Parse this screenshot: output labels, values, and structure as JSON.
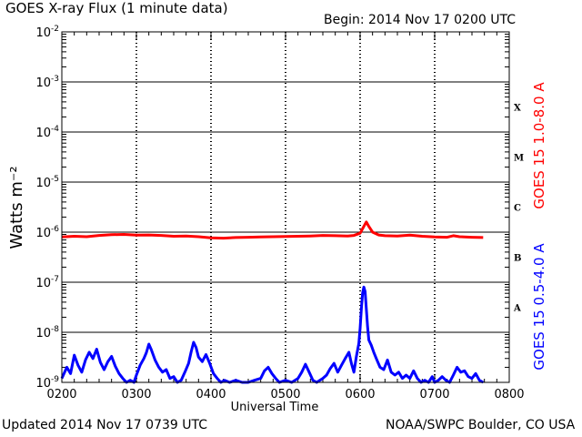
{
  "header": {
    "title": "GOES X-ray Flux (1 minute data)",
    "begin": "Begin: 2014 Nov 17 0200 UTC"
  },
  "footer": {
    "updated": "Updated 2014 Nov 17 0739 UTC",
    "credit": "NOAA/SWPC Boulder, CO USA"
  },
  "chart_data": {
    "type": "line",
    "title": "GOES X-ray Flux (1 minute data)",
    "xlabel": "Universal Time",
    "ylabel": "Watts m⁻²",
    "yscale": "log",
    "ylim": [
      1e-09,
      0.01
    ],
    "xlim": [
      "0200",
      "0800"
    ],
    "x_ticks": [
      "0200",
      "0300",
      "0400",
      "0500",
      "0600",
      "0700",
      "0800"
    ],
    "y_ticks": [
      {
        "value": 1e-09,
        "base": "10",
        "exp": "-9"
      },
      {
        "value": 1e-08,
        "base": "10",
        "exp": "-8"
      },
      {
        "value": 1e-07,
        "base": "10",
        "exp": "-7"
      },
      {
        "value": 1e-06,
        "base": "10",
        "exp": "-6"
      },
      {
        "value": 1e-05,
        "base": "10",
        "exp": "-5"
      },
      {
        "value": 0.0001,
        "base": "10",
        "exp": "-4"
      },
      {
        "value": 0.001,
        "base": "10",
        "exp": "-3"
      },
      {
        "value": 0.01,
        "base": "10",
        "exp": "-2"
      }
    ],
    "flare_classes": [
      {
        "label": "A",
        "value": 1e-08
      },
      {
        "label": "B",
        "value": 1e-07
      },
      {
        "label": "C",
        "value": 1e-06
      },
      {
        "label": "M",
        "value": 1e-05
      },
      {
        "label": "X",
        "value": 0.0001
      }
    ],
    "grid": true,
    "series": [
      {
        "name": "GOES 15 1.0-8.0 A",
        "color": "#ff0000",
        "points": [
          [
            "0200",
            8e-07
          ],
          [
            "0210",
            8.3e-07
          ],
          [
            "0220",
            8.1e-07
          ],
          [
            "0230",
            8.6e-07
          ],
          [
            "0240",
            8.9e-07
          ],
          [
            "0250",
            9e-07
          ],
          [
            "0300",
            8.7e-07
          ],
          [
            "0310",
            8.8e-07
          ],
          [
            "0320",
            8.6e-07
          ],
          [
            "0330",
            8.3e-07
          ],
          [
            "0340",
            8.4e-07
          ],
          [
            "0350",
            8.1e-07
          ],
          [
            "0400",
            7.7e-07
          ],
          [
            "0410",
            7.6e-07
          ],
          [
            "0420",
            7.8e-07
          ],
          [
            "0430",
            7.9e-07
          ],
          [
            "0440",
            8e-07
          ],
          [
            "0450",
            8.1e-07
          ],
          [
            "0500",
            8.2e-07
          ],
          [
            "0510",
            8.3e-07
          ],
          [
            "0520",
            8.4e-07
          ],
          [
            "0530",
            8.6e-07
          ],
          [
            "0540",
            8.5e-07
          ],
          [
            "0550",
            8.4e-07
          ],
          [
            "0555",
            8.6e-07
          ],
          [
            "0600",
            9.5e-07
          ],
          [
            "0603",
            1.3e-06
          ],
          [
            "0605",
            1.6e-06
          ],
          [
            "0607",
            1.3e-06
          ],
          [
            "0610",
            1e-06
          ],
          [
            "0615",
            8.8e-07
          ],
          [
            "0620",
            8.5e-07
          ],
          [
            "0630",
            8.4e-07
          ],
          [
            "0640",
            8.7e-07
          ],
          [
            "0650",
            8.3e-07
          ],
          [
            "0700",
            8e-07
          ],
          [
            "0710",
            7.9e-07
          ],
          [
            "0715",
            8.5e-07
          ],
          [
            "0720",
            8.1e-07
          ],
          [
            "0730",
            7.9e-07
          ],
          [
            "0739",
            7.8e-07
          ]
        ]
      },
      {
        "name": "GOES 15 0.5-4.0 A",
        "color": "#0000ff",
        "points": [
          [
            "0200",
            1.2e-09
          ],
          [
            "0204",
            2e-09
          ],
          [
            "0207",
            1.5e-09
          ],
          [
            "0210",
            3.5e-09
          ],
          [
            "0213",
            2.2e-09
          ],
          [
            "0216",
            1.6e-09
          ],
          [
            "0219",
            2.8e-09
          ],
          [
            "0222",
            4e-09
          ],
          [
            "0225",
            3e-09
          ],
          [
            "0228",
            4.6e-09
          ],
          [
            "0231",
            2.5e-09
          ],
          [
            "0234",
            1.8e-09
          ],
          [
            "0237",
            2.6e-09
          ],
          [
            "0240",
            3.3e-09
          ],
          [
            "0243",
            2.1e-09
          ],
          [
            "0246",
            1.5e-09
          ],
          [
            "0249",
            1.2e-09
          ],
          [
            "0252",
            1e-09
          ],
          [
            "0255",
            1.1e-09
          ],
          [
            "0258",
            1e-09
          ],
          [
            "0300",
            1.4e-09
          ],
          [
            "0303",
            2.2e-09
          ],
          [
            "0306",
            3e-09
          ],
          [
            "0308",
            3.9e-09
          ],
          [
            "0310",
            5.8e-09
          ],
          [
            "0312",
            4.5e-09
          ],
          [
            "0315",
            2.8e-09
          ],
          [
            "0318",
            2e-09
          ],
          [
            "0321",
            1.6e-09
          ],
          [
            "0324",
            1.8e-09
          ],
          [
            "0327",
            1.2e-09
          ],
          [
            "0330",
            1.3e-09
          ],
          [
            "0333",
            1e-09
          ],
          [
            "0336",
            1.1e-09
          ],
          [
            "0339",
            1.6e-09
          ],
          [
            "0342",
            2.4e-09
          ],
          [
            "0344",
            4e-09
          ],
          [
            "0346",
            6.3e-09
          ],
          [
            "0348",
            5e-09
          ],
          [
            "0350",
            3.2e-09
          ],
          [
            "0353",
            2.6e-09
          ],
          [
            "0356",
            3.6e-09
          ],
          [
            "0359",
            2.4e-09
          ],
          [
            "0402",
            1.5e-09
          ],
          [
            "0405",
            1.2e-09
          ],
          [
            "0408",
            1e-09
          ],
          [
            "0411",
            1.1e-09
          ],
          [
            "0415",
            1e-09
          ],
          [
            "0420",
            1.1e-09
          ],
          [
            "0425",
            1e-09
          ],
          [
            "0430",
            1e-09
          ],
          [
            "0435",
            1.1e-09
          ],
          [
            "0440",
            1.2e-09
          ],
          [
            "0443",
            1.7e-09
          ],
          [
            "0446",
            2e-09
          ],
          [
            "0449",
            1.5e-09
          ],
          [
            "0452",
            1.2e-09
          ],
          [
            "0455",
            1e-09
          ],
          [
            "0500",
            1.1e-09
          ],
          [
            "0505",
            1e-09
          ],
          [
            "0510",
            1.2e-09
          ],
          [
            "0513",
            1.6e-09
          ],
          [
            "0516",
            2.3e-09
          ],
          [
            "0519",
            1.6e-09
          ],
          [
            "0522",
            1.1e-09
          ],
          [
            "0525",
            1e-09
          ],
          [
            "0530",
            1.2e-09
          ],
          [
            "0533",
            1.4e-09
          ],
          [
            "0536",
            1.9e-09
          ],
          [
            "0539",
            2.4e-09
          ],
          [
            "0542",
            1.6e-09
          ],
          [
            "0545",
            2.2e-09
          ],
          [
            "0548",
            3e-09
          ],
          [
            "0551",
            4e-09
          ],
          [
            "0553",
            2.4e-09
          ],
          [
            "0555",
            1.6e-09
          ],
          [
            "0557",
            3.3e-09
          ],
          [
            "0559",
            6e-09
          ],
          [
            "0600",
            1.2e-08
          ],
          [
            "0601",
            3e-08
          ],
          [
            "0602",
            6e-08
          ],
          [
            "0603",
            8e-08
          ],
          [
            "0604",
            6.5e-08
          ],
          [
            "0605",
            3e-08
          ],
          [
            "0606",
            1.3e-08
          ],
          [
            "0607",
            7e-09
          ],
          [
            "0609",
            5.5e-09
          ],
          [
            "0611",
            4e-09
          ],
          [
            "0613",
            3e-09
          ],
          [
            "0616",
            2e-09
          ],
          [
            "0619",
            1.8e-09
          ],
          [
            "0622",
            2.8e-09
          ],
          [
            "0625",
            1.6e-09
          ],
          [
            "0628",
            1.4e-09
          ],
          [
            "0631",
            1.6e-09
          ],
          [
            "0634",
            1.2e-09
          ],
          [
            "0637",
            1.4e-09
          ],
          [
            "0640",
            1.2e-09
          ],
          [
            "0643",
            1.7e-09
          ],
          [
            "0646",
            1.2e-09
          ],
          [
            "0649",
            1e-09
          ],
          [
            "0652",
            1.1e-09
          ],
          [
            "0655",
            1e-09
          ],
          [
            "0658",
            1.3e-09
          ],
          [
            "0700",
            1e-09
          ],
          [
            "0703",
            1.1e-09
          ],
          [
            "0706",
            1.3e-09
          ],
          [
            "0709",
            1.1e-09
          ],
          [
            "0712",
            1e-09
          ],
          [
            "0715",
            1.4e-09
          ],
          [
            "0718",
            2e-09
          ],
          [
            "0721",
            1.6e-09
          ],
          [
            "0724",
            1.7e-09
          ],
          [
            "0727",
            1.3e-09
          ],
          [
            "0730",
            1.2e-09
          ],
          [
            "0733",
            1.5e-09
          ],
          [
            "0736",
            1.1e-09
          ],
          [
            "0739",
            1e-09
          ]
        ]
      }
    ]
  }
}
